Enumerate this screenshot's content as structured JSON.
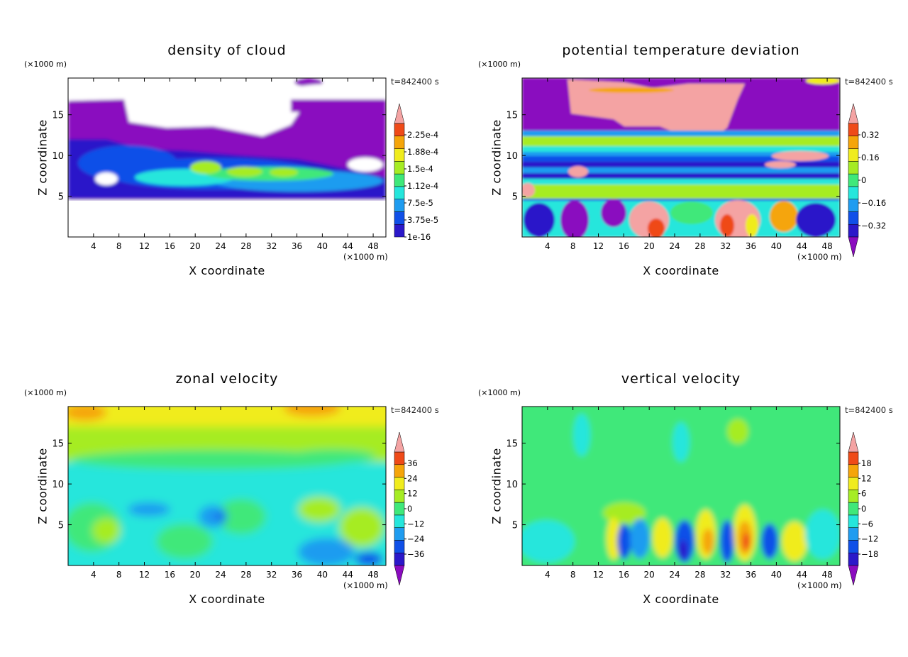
{
  "chart_data": [
    {
      "type": "heatmap",
      "title": "density of cloud",
      "time_label": "t=842400 s",
      "xlabel": "X coordinate",
      "ylabel": "Z coordinate",
      "x_unit": "(×1000 m)",
      "y_unit": "(×1000 m)",
      "xlim": [
        0,
        50
      ],
      "ylim": [
        0,
        19.5
      ],
      "x_ticks": [
        4,
        8,
        12,
        16,
        20,
        24,
        28,
        32,
        36,
        40,
        44,
        48
      ],
      "y_ticks": [
        5,
        10,
        15
      ],
      "colorbar": {
        "labels": [
          "2.25e-4",
          "1.88e-4",
          "1.5e-4",
          "1.12e-4",
          "7.5e-5",
          "3.75e-5",
          "1e-16"
        ],
        "label_levels": [
          0.000225,
          0.000188,
          0.00015,
          0.000112,
          7.5e-05,
          3.75e-05,
          1e-16
        ],
        "colors": [
          "#8a0bbf",
          "#2b18c9",
          "#1050e8",
          "#1f9cf0",
          "#25e6dc",
          "#3fe87a",
          "#a6ec24",
          "#f0ec1e",
          "#f5a50a",
          "#ef4a18",
          "#f4a3a3"
        ],
        "min_arrow": false,
        "max_arrow": true
      },
      "features": "cloud layer between z 5 and 17; dense (blue/cyan/green) core between z 5 and 10; clear below z 5"
    },
    {
      "type": "heatmap",
      "title": "potential temperature deviation",
      "time_label": "t=842400 s",
      "xlabel": "X coordinate",
      "ylabel": "Z coordinate",
      "x_unit": "(×1000 m)",
      "y_unit": "(×1000 m)",
      "xlim": [
        0,
        50
      ],
      "ylim": [
        0,
        19.5
      ],
      "x_ticks": [
        4,
        8,
        12,
        16,
        20,
        24,
        28,
        32,
        36,
        40,
        44,
        48
      ],
      "y_ticks": [
        5,
        10,
        15
      ],
      "colorbar": {
        "labels": [
          "0.32",
          "0.16",
          "0",
          "−0.16",
          "−0.32"
        ],
        "label_levels": [
          0.32,
          0.16,
          0,
          -0.16,
          -0.32
        ],
        "colors": [
          "#8a0bbf",
          "#2b18c9",
          "#1050e8",
          "#1f9cf0",
          "#25e6dc",
          "#3fe87a",
          "#a6ec24",
          "#f0ec1e",
          "#f5a50a",
          "#ef4a18",
          "#f4a3a3"
        ],
        "min_arrow": true,
        "max_arrow": true
      },
      "features": "strong positive (pink) region near top; negative (purple) above z 14; banded structure between z 5 and 14; mixed warm/cold cells below z 5"
    },
    {
      "type": "heatmap",
      "title": "zonal velocity",
      "time_label": "t=842400 s",
      "xlabel": "X coordinate",
      "ylabel": "Z coordinate",
      "x_unit": "(×1000 m)",
      "y_unit": "(×1000 m)",
      "xlim": [
        0,
        50
      ],
      "ylim": [
        0,
        19.5
      ],
      "x_ticks": [
        4,
        8,
        12,
        16,
        20,
        24,
        28,
        32,
        36,
        40,
        44,
        48
      ],
      "y_ticks": [
        5,
        10,
        15
      ],
      "colorbar": {
        "labels": [
          "36",
          "24",
          "12",
          "0",
          "−12",
          "−24",
          "−36"
        ],
        "label_levels": [
          36,
          24,
          12,
          0,
          -12,
          -24,
          -36
        ],
        "colors": [
          "#8a0bbf",
          "#2b18c9",
          "#1050e8",
          "#1f9cf0",
          "#25e6dc",
          "#3fe87a",
          "#a6ec24",
          "#f0ec1e",
          "#f5a50a",
          "#ef4a18",
          "#f4a3a3"
        ],
        "min_arrow": true,
        "max_arrow": true
      },
      "features": "positive (yellow) near top, near zero (green/cyan) mid levels, slightly negative cyan/blue patches below z 10"
    },
    {
      "type": "heatmap",
      "title": "vertical velocity",
      "time_label": "t=842400 s",
      "xlabel": "X coordinate",
      "ylabel": "Z coordinate",
      "x_unit": "(×1000 m)",
      "y_unit": "(×1000 m)",
      "xlim": [
        0,
        50
      ],
      "ylim": [
        0,
        19.5
      ],
      "x_ticks": [
        4,
        8,
        12,
        16,
        20,
        24,
        28,
        32,
        36,
        40,
        44,
        48
      ],
      "y_ticks": [
        5,
        10,
        15
      ],
      "colorbar": {
        "labels": [
          "18",
          "12",
          "6",
          "0",
          "−6",
          "−12",
          "−18"
        ],
        "label_levels": [
          18,
          12,
          6,
          0,
          -6,
          -12,
          -18
        ],
        "colors": [
          "#8a0bbf",
          "#2b18c9",
          "#1050e8",
          "#1f9cf0",
          "#25e6dc",
          "#3fe87a",
          "#a6ec24",
          "#f0ec1e",
          "#f5a50a",
          "#ef4a18",
          "#f4a3a3"
        ],
        "min_arrow": true,
        "max_arrow": true
      },
      "features": "mostly near zero (green); alternating updraft (yellow/orange/red) and downdraft (blue) cells below z 8"
    }
  ]
}
